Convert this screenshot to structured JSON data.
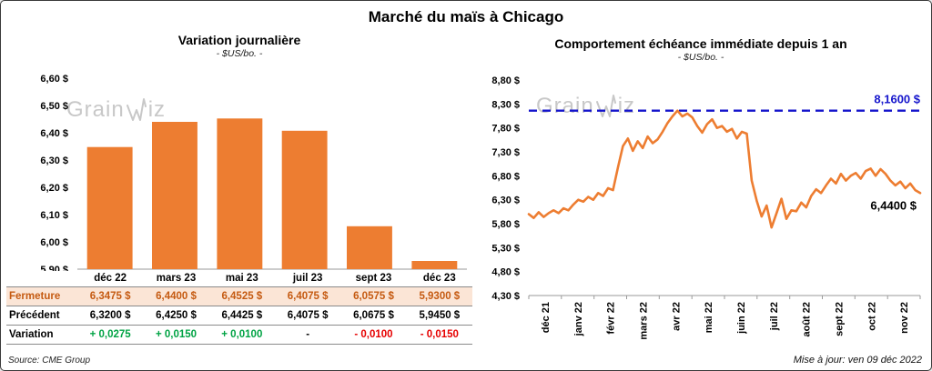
{
  "page": {
    "title": "Marché du maïs à Chicago",
    "source_note": "Source: CME Group",
    "updated_note": "Mise à jour: ven 09 déc 2022",
    "watermark": "GrainWiz"
  },
  "colors": {
    "bar_orange": "#ED7D31",
    "line_orange": "#ED7D31",
    "reference_blue": "#1414CC",
    "close_row_bg": "#FBE5D6",
    "close_row_text": "#C55A11",
    "positive": "#00A344",
    "negative": "#E60000"
  },
  "chart_data": [
    {
      "type": "bar",
      "title": "Variation journalière",
      "subtitle": "- $US/bo. -",
      "categories": [
        "déc 22",
        "mars 23",
        "mai 23",
        "juil 23",
        "sept 23",
        "déc 23"
      ],
      "values": [
        6.3475,
        6.44,
        6.4525,
        6.4075,
        6.0575,
        5.93
      ],
      "ylim": [
        5.9,
        6.6
      ],
      "ytick_step": 0.1,
      "ytick_labels": [
        "5,90 $",
        "6,00 $",
        "6,10 $",
        "6,20 $",
        "6,30 $",
        "6,40 $",
        "6,50 $",
        "6,60 $"
      ],
      "bar_color": "#ED7D31",
      "grid": false,
      "legend": "none"
    },
    {
      "type": "line",
      "title": "Comportement échéance immédiate depuis 1 an",
      "subtitle": "- $US/bo. -",
      "x_labels": [
        "déc 21",
        "janv 22",
        "févr 22",
        "mars 22",
        "avr 22",
        "mai 22",
        "juin 22",
        "juil 22",
        "août 22",
        "sept 22",
        "oct 22",
        "nov 22"
      ],
      "ylim": [
        4.3,
        8.8
      ],
      "ytick_step": 0.5,
      "ytick_labels": [
        "4,30 $",
        "4,80 $",
        "5,30 $",
        "5,80 $",
        "6,30 $",
        "6,80 $",
        "7,30 $",
        "7,80 $",
        "8,30 $",
        "8,80 $"
      ],
      "line_color": "#ED7D31",
      "grid": false,
      "legend": "none",
      "reference_line": {
        "value": 8.16,
        "label": "8,1600 $",
        "color": "#1414CC",
        "style": "dashed"
      },
      "end_label": {
        "value": 6.44,
        "label": "6,4400 $"
      },
      "points": [
        6.0,
        5.92,
        6.04,
        5.94,
        6.02,
        6.08,
        6.02,
        6.12,
        6.08,
        6.2,
        6.3,
        6.26,
        6.36,
        6.3,
        6.44,
        6.38,
        6.54,
        6.5,
        6.98,
        7.42,
        7.58,
        7.32,
        7.52,
        7.38,
        7.62,
        7.48,
        7.56,
        7.72,
        7.9,
        8.04,
        8.16,
        8.04,
        8.1,
        8.02,
        7.84,
        7.7,
        7.88,
        7.98,
        7.8,
        7.84,
        7.72,
        7.78,
        7.58,
        7.72,
        7.68,
        6.7,
        6.28,
        5.95,
        6.18,
        5.72,
        6.02,
        6.32,
        5.9,
        6.08,
        6.06,
        6.24,
        6.14,
        6.38,
        6.52,
        6.44,
        6.6,
        6.74,
        6.64,
        6.84,
        6.7,
        6.8,
        6.86,
        6.74,
        6.9,
        6.95,
        6.8,
        6.94,
        6.84,
        6.7,
        6.6,
        6.68,
        6.54,
        6.64,
        6.5,
        6.44
      ]
    }
  ],
  "table": {
    "rows": [
      {
        "label": "Fermeture",
        "style": "close",
        "values": [
          "6,3475  $",
          "6,4400  $",
          "6,4525  $",
          "6,4075  $",
          "6,0575  $",
          "5,9300  $"
        ]
      },
      {
        "label": "Précédent",
        "style": "previous",
        "values": [
          "6,3200  $",
          "6,4250  $",
          "6,4425  $",
          "6,4075  $",
          "6,0675  $",
          "5,9450  $"
        ]
      },
      {
        "label": "Variation",
        "style": "variation",
        "values": [
          "+ 0,0275",
          "+ 0,0150",
          "+ 0,0100",
          "-",
          "- 0,0100",
          "- 0,0150"
        ],
        "value_classes": [
          "pos",
          "pos",
          "pos",
          "zero",
          "neg",
          "neg"
        ]
      }
    ]
  }
}
